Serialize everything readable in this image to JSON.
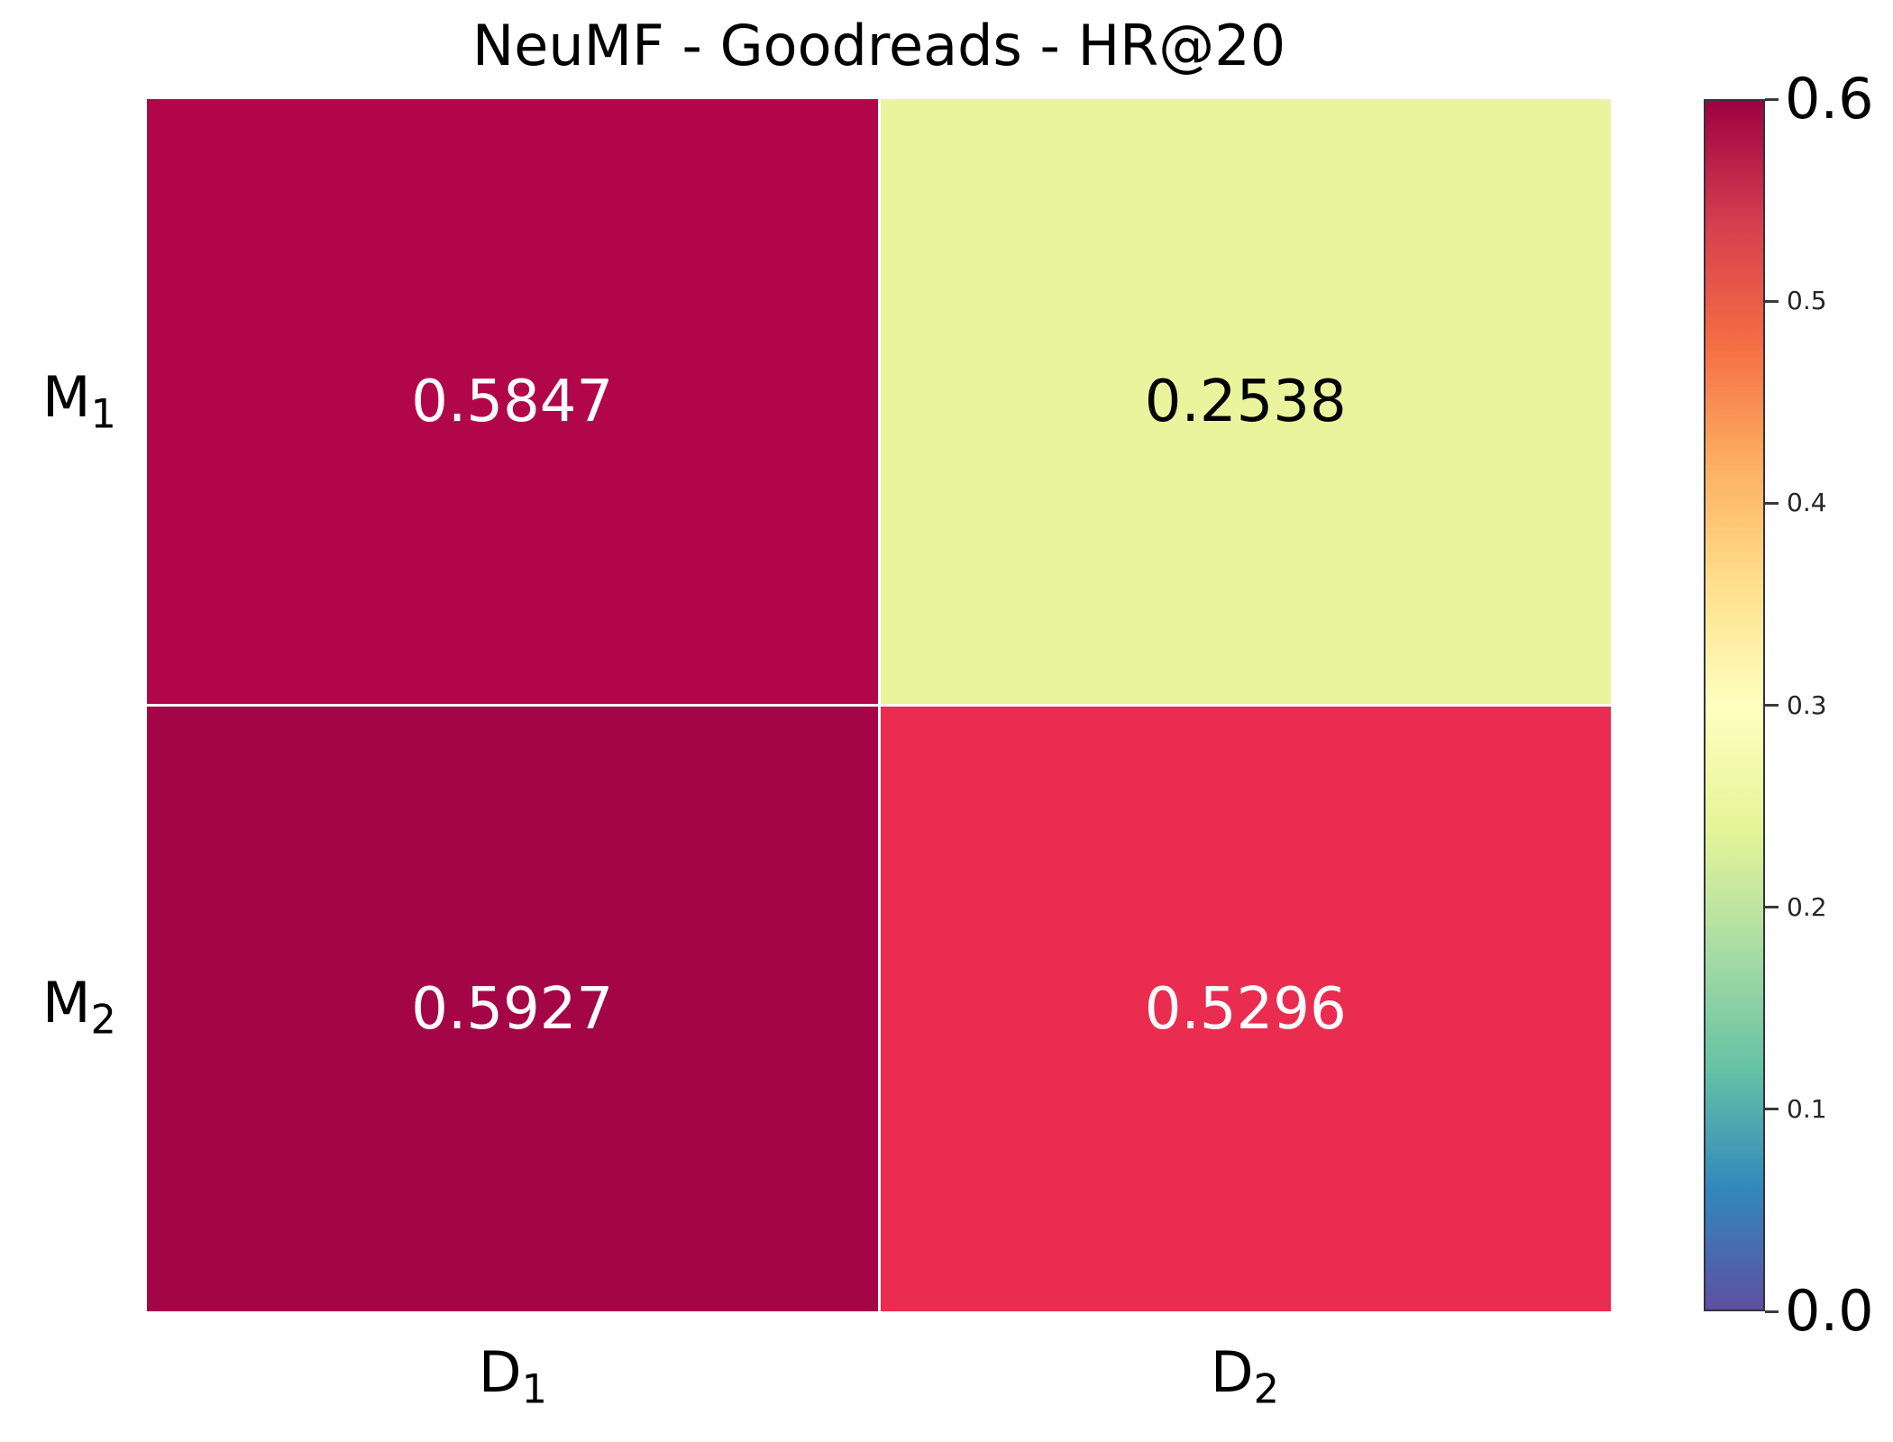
{
  "chart_data": {
    "type": "heatmap",
    "title": "NeuMF - Goodreads - HR@20",
    "rows": [
      {
        "base": "M",
        "sub": "1"
      },
      {
        "base": "M",
        "sub": "2"
      }
    ],
    "columns": [
      {
        "base": "D",
        "sub": "1"
      },
      {
        "base": "D",
        "sub": "2"
      }
    ],
    "values": [
      [
        0.5847,
        0.2538
      ],
      [
        0.5927,
        0.5296
      ]
    ],
    "value_range": [
      0.0,
      0.6
    ],
    "cells": [
      {
        "row": "M1",
        "col": "D1",
        "label": "0.5847",
        "bg": "#b1074a",
        "text_color": "#ffffff"
      },
      {
        "row": "M1",
        "col": "D2",
        "label": "0.2538",
        "bg": "#eaf49c",
        "text_color": "#000000"
      },
      {
        "row": "M2",
        "col": "D1",
        "label": "0.5927",
        "bg": "#a40546",
        "text_color": "#ffffff"
      },
      {
        "row": "M2",
        "col": "D2",
        "label": "0.5296",
        "bg": "#e92c4f",
        "text_color": "#ffffff"
      }
    ],
    "colorbar": {
      "colormap": "Spectral_r",
      "vmin": 0.0,
      "vmax": 0.6,
      "tick_labels": [
        "0.6",
        "0.5",
        "0.4",
        "0.3",
        "0.2",
        "0.1",
        "0.0"
      ],
      "large_tick_labels": [
        "0.6",
        "0.0"
      ],
      "gradient_stops_bottom_to_top": [
        "#5e4fa2",
        "#3288bd",
        "#66c2a5",
        "#abdda4",
        "#e6f598",
        "#ffffbf",
        "#fee08b",
        "#fdae61",
        "#f46d43",
        "#d53e4f",
        "#9e0142"
      ],
      "position": "right"
    },
    "grid": false,
    "cell_gap_color": "#ffffff"
  }
}
